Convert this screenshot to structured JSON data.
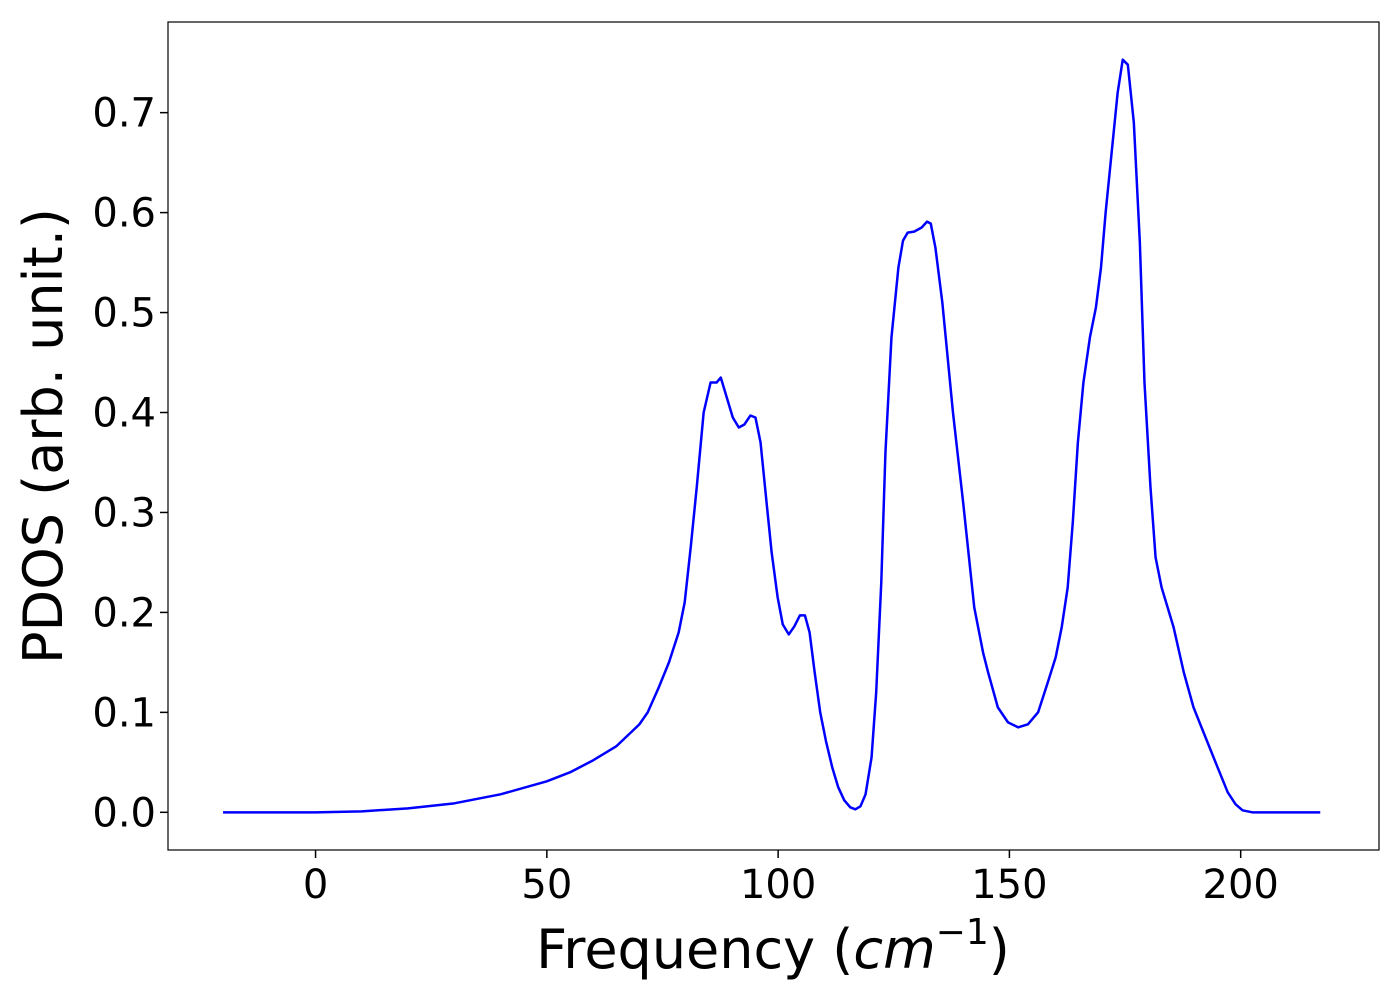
{
  "chart_data": {
    "type": "line",
    "x_label": [
      "Frequency (",
      "cm",
      "−1",
      ")"
    ],
    "y_label": "PDOS (arb. unit.)",
    "x": [
      -20,
      -10,
      0,
      5,
      10,
      20,
      30,
      40,
      50,
      55,
      60,
      65,
      70,
      71.8,
      74.2,
      76.4,
      78.5,
      79.8,
      81.1,
      82.4,
      83.9,
      85.4,
      86.7,
      87.6,
      88.9,
      90.2,
      91.5,
      92.7,
      94,
      95.1,
      96.2,
      97.5,
      98.6,
      99.9,
      101,
      102.3,
      103.5,
      104.7,
      105.8,
      106.8,
      107.9,
      109.1,
      110.4,
      111.7,
      113,
      114.3,
      115.6,
      116.7,
      117.8,
      118.9,
      120.2,
      121.2,
      122.3,
      123.2,
      124.5,
      126,
      127,
      128,
      129.4,
      131,
      132.2,
      133,
      134,
      135.5,
      137.8,
      140,
      142.4,
      144.3,
      145.4,
      147.5,
      149.7,
      151.9,
      154,
      156.2,
      158.3,
      160,
      161.3,
      162.6,
      163.7,
      164.8,
      166,
      167.4,
      168.7,
      169.8,
      170.8,
      172.1,
      173.4,
      174.5,
      175.6,
      176.9,
      178.2,
      179.2,
      180.5,
      181.6,
      182.9,
      184.2,
      185.5,
      187.7,
      189.8,
      192.4,
      195,
      197.2,
      198.9,
      200.4,
      202.5,
      210,
      217.2
    ],
    "series": [
      {
        "name": "PDOS",
        "color": "#0000ff",
        "values": [
          0,
          0,
          0,
          0.0005,
          0.001,
          0.004,
          0.009,
          0.018,
          0.031,
          0.04,
          0.052,
          0.066,
          0.088,
          0.1,
          0.125,
          0.15,
          0.18,
          0.21,
          0.265,
          0.325,
          0.4,
          0.43,
          0.43,
          0.435,
          0.415,
          0.395,
          0.385,
          0.388,
          0.397,
          0.395,
          0.37,
          0.31,
          0.26,
          0.215,
          0.188,
          0.178,
          0.186,
          0.197,
          0.197,
          0.18,
          0.14,
          0.1,
          0.07,
          0.045,
          0.025,
          0.012,
          0.005,
          0.003,
          0.006,
          0.018,
          0.055,
          0.12,
          0.23,
          0.36,
          0.475,
          0.545,
          0.572,
          0.58,
          0.581,
          0.585,
          0.591,
          0.589,
          0.565,
          0.51,
          0.4,
          0.31,
          0.205,
          0.16,
          0.14,
          0.105,
          0.09,
          0.085,
          0.088,
          0.1,
          0.13,
          0.155,
          0.185,
          0.225,
          0.29,
          0.37,
          0.43,
          0.475,
          0.505,
          0.545,
          0.6,
          0.66,
          0.72,
          0.753,
          0.748,
          0.69,
          0.57,
          0.43,
          0.325,
          0.255,
          0.225,
          0.205,
          0.185,
          0.14,
          0.105,
          0.075,
          0.045,
          0.02,
          0.008,
          0.002,
          0,
          0,
          0
        ]
      }
    ],
    "xlim": [
      -31.9,
      229.9
    ],
    "ylim": [
      -0.0377,
      0.7907
    ],
    "xticks": [
      0,
      50,
      100,
      150,
      200
    ],
    "yticks": [
      {
        "value": 0,
        "label": "0.0"
      },
      0.1,
      0.2,
      0.3,
      0.4,
      0.5,
      0.6,
      0.7
    ],
    "grid": false
  }
}
